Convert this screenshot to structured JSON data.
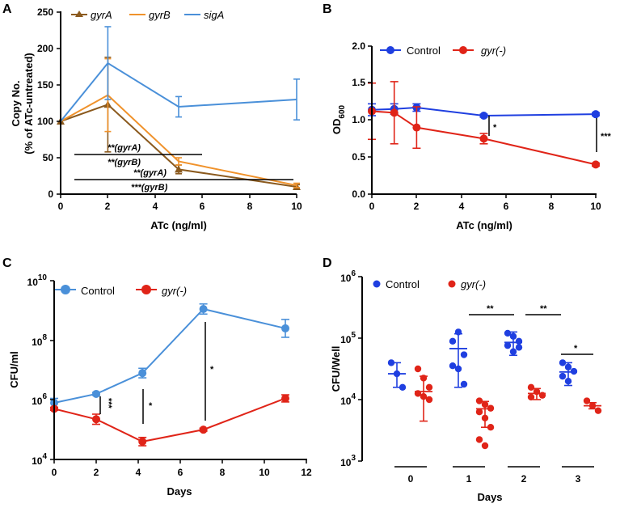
{
  "colors": {
    "gyrA": "#8b5a1e",
    "gyrB": "#f0922b",
    "sigA": "#4a90d9",
    "control_blue_b": "#1f3fe0",
    "gyr_red": "#e02418",
    "control_lightblue": "#4a90d9"
  },
  "chart_data": [
    {
      "panel": "A",
      "type": "line",
      "xlabel": "ATc (ng/ml)",
      "ylabel_line1": "Copy No.",
      "ylabel_line2": "(% of ATc-untreated)",
      "xlim": [
        0,
        10
      ],
      "ylim": [
        0,
        250
      ],
      "xticks": [
        "0",
        "2",
        "4",
        "6",
        "8",
        "10"
      ],
      "yticks": [
        "0",
        "50",
        "100",
        "150",
        "200",
        "250"
      ],
      "legend": [
        "gyrA",
        "gyrB",
        "sigA"
      ],
      "series": [
        {
          "name": "gyrA",
          "color": "#8b5a1e",
          "marker": "triangle",
          "x": [
            0,
            2,
            5,
            10
          ],
          "y": [
            100,
            123,
            34,
            10
          ],
          "err": [
            0,
            65,
            6,
            3
          ]
        },
        {
          "name": "gyrB",
          "color": "#f0922b",
          "marker": "none",
          "x": [
            0,
            2,
            5,
            10
          ],
          "y": [
            100,
            136,
            45,
            12
          ],
          "err": [
            0,
            50,
            5,
            3
          ]
        },
        {
          "name": "sigA",
          "color": "#4a90d9",
          "marker": "none",
          "x": [
            0,
            2,
            5,
            10
          ],
          "y": [
            100,
            180,
            120,
            130
          ],
          "err": [
            0,
            50,
            14,
            28
          ]
        }
      ],
      "annotations": [
        "**(gyrA)",
        "**(gyrB)",
        "**(gyrA)",
        "***(gyrB)"
      ]
    },
    {
      "panel": "B",
      "type": "line",
      "xlabel": "ATc (ng/ml)",
      "ylabel": "OD",
      "ylabel_sub": "600",
      "xlim": [
        0,
        10
      ],
      "ylim": [
        0,
        2.0
      ],
      "xticks": [
        "0",
        "2",
        "4",
        "6",
        "8",
        "10"
      ],
      "yticks": [
        "0.0",
        "0.5",
        "1.0",
        "1.5",
        "2.0"
      ],
      "legend": [
        "Control",
        "gyr(-)"
      ],
      "series": [
        {
          "name": "Control",
          "color": "#1f3fe0",
          "x": [
            0,
            1,
            2,
            5,
            10
          ],
          "y": [
            1.14,
            1.15,
            1.17,
            1.06,
            1.08
          ],
          "err": [
            0.08,
            0.07,
            0.05,
            0.02,
            0.02
          ]
        },
        {
          "name": "gyr(-)",
          "color": "#e02418",
          "x": [
            0,
            1,
            2,
            5,
            10
          ],
          "y": [
            1.12,
            1.1,
            0.9,
            0.75,
            0.4
          ],
          "err": [
            0.38,
            0.42,
            0.28,
            0.07,
            0.02
          ]
        }
      ],
      "annotations": [
        "*",
        "***"
      ]
    },
    {
      "panel": "C",
      "type": "line",
      "xlabel": "Days",
      "ylabel": "CFU/ml",
      "yscale": "log10",
      "xlim": [
        0,
        12
      ],
      "ylim_exp": [
        4,
        10
      ],
      "xticks": [
        "0",
        "2",
        "4",
        "6",
        "8",
        "10",
        "12"
      ],
      "yticks_base": "10",
      "yticks_exp": [
        "4",
        "6",
        "8",
        "10"
      ],
      "legend": [
        "Control",
        "gyr(-)"
      ],
      "series": [
        {
          "name": "Control",
          "color": "#4a90d9",
          "x": [
            0,
            2,
            4.2,
            7.1,
            11
          ],
          "log10_y": [
            5.9,
            6.2,
            6.9,
            9.05,
            8.4
          ],
          "log10_err": [
            0.15,
            0.05,
            0.16,
            0.17,
            0.3
          ]
        },
        {
          "name": "gyr(-)",
          "color": "#e02418",
          "x": [
            0,
            2,
            4.2,
            7.1,
            11
          ],
          "log10_y": [
            5.7,
            5.35,
            4.6,
            5.0,
            6.05
          ],
          "log10_err": [
            0.05,
            0.17,
            0.14,
            0.05,
            0.12
          ]
        }
      ],
      "annotations": [
        "***",
        "*",
        "*"
      ]
    },
    {
      "panel": "D",
      "type": "scatter",
      "xlabel": "Days",
      "ylabel": "CFU/Well",
      "yscale": "log10",
      "ylim_exp": [
        3,
        6
      ],
      "yticks_base": "10",
      "yticks_exp": [
        "3",
        "4",
        "5",
        "6"
      ],
      "categories": [
        "0",
        "1",
        "2",
        "3"
      ],
      "legend": [
        "Control",
        "gyr(-)"
      ],
      "series": [
        {
          "name": "Control",
          "color": "#1f3fe0",
          "points": [
            [
              4.6,
              4.42,
              4.2
            ],
            [
              4.55,
              4.5,
              4.73,
              4.95,
              5.1,
              4.25
            ],
            [
              5.08,
              5.03,
              4.95,
              4.88,
              4.78,
              4.85
            ],
            [
              4.6,
              4.53,
              4.46,
              4.38,
              4.3
            ]
          ],
          "mean": [
            4.42,
            4.83,
            4.93,
            4.45
          ],
          "sd_low": [
            4.2,
            4.2,
            4.72,
            4.23
          ],
          "sd_high": [
            4.6,
            5.07,
            5.1,
            4.6
          ]
        },
        {
          "name": "gyr(-)",
          "color": "#e02418",
          "points": [
            [
              4.5,
              4.35,
              4.2,
              4.1,
              4.05,
              4.0
            ],
            [
              3.98,
              3.92,
              3.86,
              3.8,
              3.7,
              3.55,
              3.35,
              3.25
            ],
            [
              4.2,
              4.13,
              4.07,
              4.04
            ],
            [
              3.98,
              3.9,
              3.82
            ]
          ],
          "mean": [
            4.13,
            3.85,
            4.1,
            3.9
          ],
          "sd_low": [
            3.65,
            3.55,
            4.0,
            3.85
          ],
          "sd_high": [
            4.38,
            3.97,
            4.18,
            3.95
          ]
        }
      ],
      "annotations": [
        "**",
        "**",
        "*"
      ]
    }
  ]
}
